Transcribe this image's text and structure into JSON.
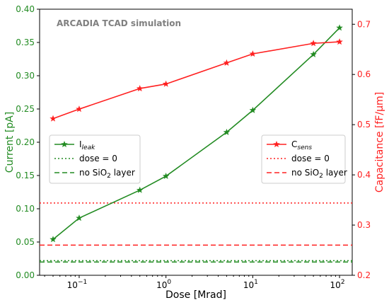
{
  "chart_data": {
    "type": "line",
    "annotation": "ARCADIA TCAD simulation",
    "xlabel": "Dose [Mrad]",
    "ylabel_left": "Current [pA]",
    "ylabel_right": "Capacitance [fF/μm]",
    "xscale": "log",
    "xlim": [
      0.035,
      140
    ],
    "ylim_left": [
      0,
      0.4
    ],
    "ylim_right": [
      0.2,
      0.73
    ],
    "x_ticks": [
      {
        "value": 0.1,
        "base": "10",
        "exp": "−1"
      },
      {
        "value": 1,
        "base": "10",
        "exp": "0"
      },
      {
        "value": 10,
        "base": "10",
        "exp": "1"
      },
      {
        "value": 100,
        "base": "10",
        "exp": "2"
      }
    ],
    "y_ticks_left": [
      "0.00",
      "0.05",
      "0.10",
      "0.15",
      "0.20",
      "0.25",
      "0.30",
      "0.35",
      "0.40"
    ],
    "y_ticks_right": [
      "0.2",
      "0.3",
      "0.4",
      "0.5",
      "0.6",
      "0.7"
    ],
    "left_color": "#228b22",
    "right_color": "#ff2020",
    "series": [
      {
        "axis": "left",
        "color": "#228b22",
        "marker": "star",
        "x": [
          0.05,
          0.1,
          0.5,
          1,
          5,
          10,
          50,
          100
        ],
        "y": [
          0.054,
          0.086,
          0.128,
          0.149,
          0.215,
          0.248,
          0.332,
          0.372
        ]
      },
      {
        "axis": "right",
        "color": "#ff2020",
        "marker": "star",
        "x": [
          0.05,
          0.1,
          0.5,
          1,
          5,
          10,
          50,
          100
        ],
        "y": [
          0.512,
          0.531,
          0.572,
          0.581,
          0.623,
          0.641,
          0.662,
          0.665
        ]
      }
    ],
    "reference_lines": [
      {
        "axis": "left",
        "value": 0.022,
        "style": "dotted",
        "color": "#228b22"
      },
      {
        "axis": "left",
        "value": 0.02,
        "style": "dashed",
        "color": "#228b22"
      },
      {
        "axis": "right",
        "value": 0.344,
        "style": "dotted",
        "color": "#ff2020"
      },
      {
        "axis": "right",
        "value": 0.26,
        "style": "dashed",
        "color": "#ff2020"
      }
    ],
    "legends": [
      {
        "position": "center-left",
        "entries": [
          {
            "label": "I",
            "subscript": "leak",
            "style": "solid-star",
            "color": "#228b22"
          },
          {
            "label": "dose = 0",
            "style": "dotted",
            "color": "#228b22"
          },
          {
            "label": "no SiO",
            "subscript2": "2",
            "label_tail": " layer",
            "style": "dashed",
            "color": "#228b22"
          }
        ]
      },
      {
        "position": "center-right",
        "entries": [
          {
            "label": "C",
            "subscript": "sens",
            "style": "solid-star",
            "color": "#ff2020"
          },
          {
            "label": "dose = 0",
            "style": "dotted",
            "color": "#ff2020"
          },
          {
            "label": "no SiO",
            "subscript2": "2",
            "label_tail": " layer",
            "style": "dashed",
            "color": "#ff2020"
          }
        ]
      }
    ]
  }
}
